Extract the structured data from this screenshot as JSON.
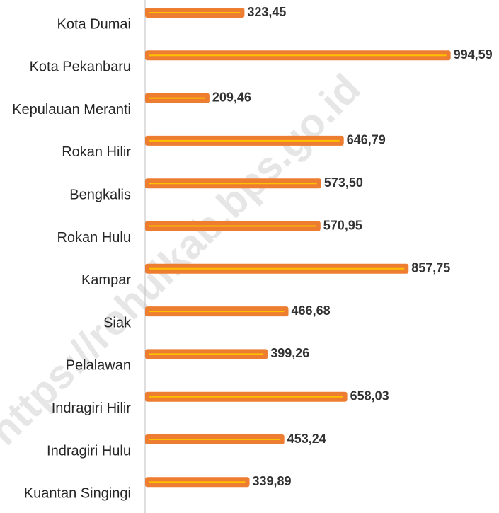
{
  "chart_data": {
    "type": "bar",
    "orientation": "horizontal",
    "categories": [
      "Kota Dumai",
      "Kota Pekanbaru",
      "Kepulauan Meranti",
      "Rokan Hilir",
      "Bengkalis",
      "Rokan Hulu",
      "Kampar",
      "Siak",
      "Pelalawan",
      "Indragiri Hilir",
      "Indragiri Hulu",
      "Kuantan Singingi"
    ],
    "values": [
      323.45,
      994.59,
      209.46,
      646.79,
      573.5,
      570.95,
      857.75,
      466.68,
      399.26,
      658.03,
      453.24,
      339.89
    ],
    "value_labels": [
      "323,45",
      "994,59",
      "209,46",
      "646,79",
      "573,50",
      "570,95",
      "857,75",
      "466,68",
      "399,26",
      "658,03",
      "453,24",
      "339,89"
    ],
    "color": "#ed7d31",
    "inner_color": "#ffc000",
    "xlim": [
      0,
      1000
    ]
  },
  "watermark": "https://rohulkab.bps.go.id"
}
